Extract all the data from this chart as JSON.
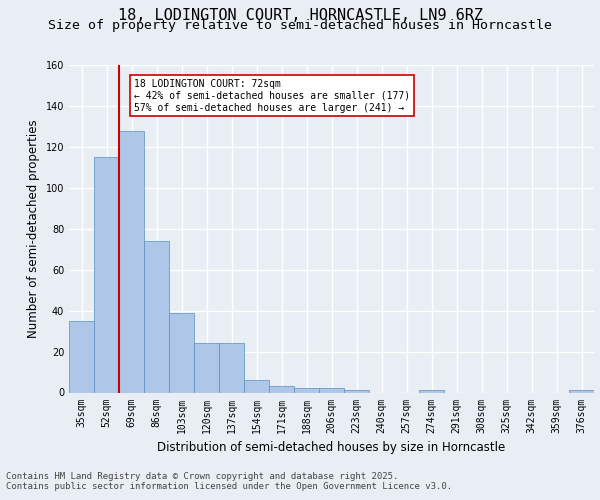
{
  "title_line1": "18, LODINGTON COURT, HORNCASTLE, LN9 6RZ",
  "title_line2": "Size of property relative to semi-detached houses in Horncastle",
  "xlabel": "Distribution of semi-detached houses by size in Horncastle",
  "ylabel": "Number of semi-detached properties",
  "footer_line1": "Contains HM Land Registry data © Crown copyright and database right 2025.",
  "footer_line2": "Contains public sector information licensed under the Open Government Licence v3.0.",
  "categories": [
    "35sqm",
    "52sqm",
    "69sqm",
    "86sqm",
    "103sqm",
    "120sqm",
    "137sqm",
    "154sqm",
    "171sqm",
    "188sqm",
    "206sqm",
    "223sqm",
    "240sqm",
    "257sqm",
    "274sqm",
    "291sqm",
    "308sqm",
    "325sqm",
    "342sqm",
    "359sqm",
    "376sqm"
  ],
  "values": [
    35,
    115,
    128,
    74,
    39,
    24,
    24,
    6,
    3,
    2,
    2,
    1,
    0,
    0,
    1,
    0,
    0,
    0,
    0,
    0,
    1
  ],
  "bar_color": "#aec6e8",
  "bar_edge_color": "#5a8fc0",
  "highlight_line_color": "#cc0000",
  "annotation_text": "18 LODINGTON COURT: 72sqm\n← 42% of semi-detached houses are smaller (177)\n57% of semi-detached houses are larger (241) →",
  "annotation_box_color": "#ffffff",
  "annotation_box_edge": "#cc0000",
  "ylim": [
    0,
    160
  ],
  "yticks": [
    0,
    20,
    40,
    60,
    80,
    100,
    120,
    140,
    160
  ],
  "background_color": "#e8eef4",
  "plot_background": "#e8eef4",
  "grid_color": "#ffffff",
  "title_fontsize": 11,
  "subtitle_fontsize": 9.5,
  "axis_label_fontsize": 8.5,
  "tick_fontsize": 7,
  "footer_fontsize": 6.5
}
